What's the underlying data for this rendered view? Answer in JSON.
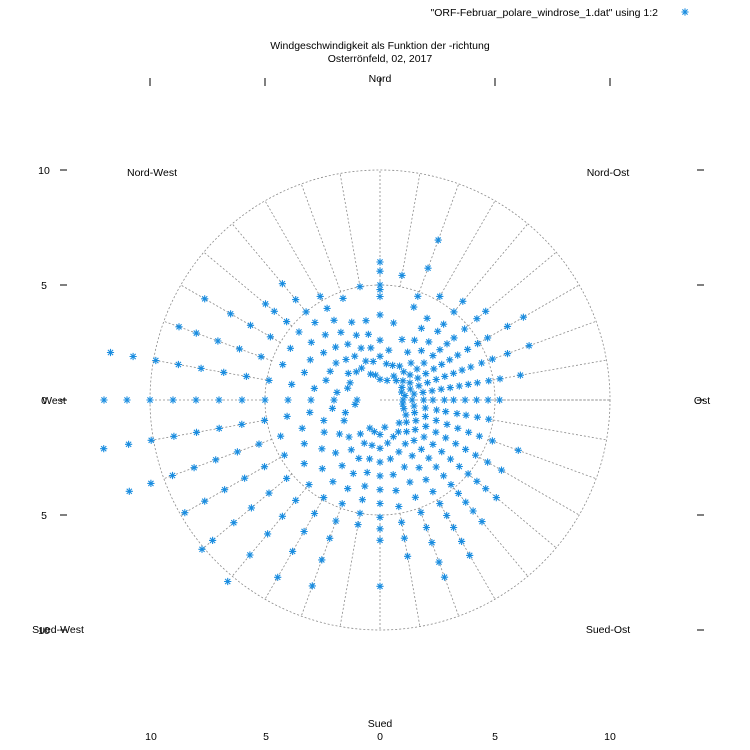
{
  "chart_data": {
    "type": "scatter",
    "polar": true,
    "title": "Windgeschwindigkeit als Funktion der -richtung",
    "subtitle": "Osterrönfeld, 02, 2017",
    "legend": {
      "label": "\"ORF-Februar_polare_windrose_1.dat\" using 1:2",
      "placement": "top-right"
    },
    "series_color": "#1a8de0",
    "grid_color": "#8a8a8a",
    "direction_labels": {
      "n": "Nord",
      "ne": "Nord-Ost",
      "e": "Ost",
      "se": "Sued-Ost",
      "s": "Sued",
      "sw": "Sued-West",
      "w": "West",
      "nw": "Nord-West"
    },
    "x_ticks": [
      "10",
      "5",
      "0",
      "5",
      "10"
    ],
    "y_ticks": [
      "10",
      "5",
      "0",
      "5",
      "10"
    ],
    "r_rings": [
      5,
      10
    ],
    "r_range": [
      0,
      10
    ],
    "angle_step_deg": 10,
    "grid": true,
    "points": [
      [
        0,
        6.0
      ],
      [
        0,
        5.6
      ],
      [
        0,
        4.8
      ],
      [
        0,
        4.5
      ],
      [
        0,
        3.7
      ],
      [
        0,
        2.6
      ],
      [
        0,
        1.9
      ],
      [
        0,
        5.0
      ],
      [
        0,
        0.9
      ],
      [
        10,
        5.5
      ],
      [
        10,
        3.4
      ],
      [
        10,
        2.2
      ],
      [
        10,
        1.6
      ],
      [
        20,
        7.4
      ],
      [
        20,
        6.1
      ],
      [
        20,
        4.8
      ],
      [
        20,
        4.3
      ],
      [
        20,
        2.8
      ],
      [
        20,
        1.6
      ],
      [
        20,
        0.9
      ],
      [
        30,
        5.2
      ],
      [
        30,
        4.1
      ],
      [
        30,
        3.6
      ],
      [
        30,
        3.0
      ],
      [
        30,
        2.4
      ],
      [
        30,
        1.7
      ],
      [
        30,
        1.2
      ],
      [
        40,
        5.6
      ],
      [
        40,
        5.0
      ],
      [
        40,
        4.3
      ],
      [
        40,
        3.9
      ],
      [
        40,
        3.3
      ],
      [
        40,
        2.8
      ],
      [
        40,
        2.1
      ],
      [
        40,
        1.6
      ],
      [
        40,
        1.1
      ],
      [
        50,
        6.0
      ],
      [
        50,
        5.5
      ],
      [
        50,
        4.8
      ],
      [
        50,
        4.2
      ],
      [
        50,
        3.8
      ],
      [
        50,
        3.4
      ],
      [
        50,
        3.0
      ],
      [
        50,
        2.5
      ],
      [
        50,
        2.1
      ],
      [
        50,
        1.7
      ],
      [
        50,
        1.3
      ],
      [
        60,
        7.2
      ],
      [
        60,
        6.4
      ],
      [
        60,
        5.4
      ],
      [
        60,
        4.9
      ],
      [
        60,
        4.4
      ],
      [
        60,
        3.9
      ],
      [
        60,
        3.5
      ],
      [
        60,
        3.1
      ],
      [
        60,
        2.7
      ],
      [
        60,
        2.3
      ],
      [
        60,
        1.9
      ],
      [
        60,
        1.5
      ],
      [
        60,
        1.1
      ],
      [
        70,
        6.9
      ],
      [
        70,
        5.9
      ],
      [
        70,
        5.2
      ],
      [
        70,
        4.7
      ],
      [
        70,
        4.2
      ],
      [
        70,
        3.8
      ],
      [
        70,
        3.4
      ],
      [
        70,
        3.0
      ],
      [
        70,
        2.6
      ],
      [
        70,
        2.2
      ],
      [
        70,
        1.8
      ],
      [
        70,
        1.4
      ],
      [
        70,
        1.0
      ],
      [
        80,
        6.2
      ],
      [
        80,
        5.3
      ],
      [
        80,
        4.8
      ],
      [
        80,
        4.3
      ],
      [
        80,
        3.9
      ],
      [
        80,
        3.5
      ],
      [
        80,
        3.1
      ],
      [
        80,
        2.7
      ],
      [
        80,
        2.3
      ],
      [
        80,
        1.9
      ],
      [
        80,
        1.5
      ],
      [
        80,
        1.1
      ],
      [
        90,
        5.2
      ],
      [
        90,
        4.7
      ],
      [
        90,
        4.2
      ],
      [
        90,
        3.7
      ],
      [
        90,
        3.2
      ],
      [
        90,
        2.8
      ],
      [
        90,
        2.3
      ],
      [
        90,
        1.9
      ],
      [
        90,
        1.4
      ],
      [
        90,
        1.0
      ],
      [
        100,
        4.8
      ],
      [
        100,
        4.3
      ],
      [
        100,
        3.8
      ],
      [
        100,
        3.4
      ],
      [
        100,
        2.9
      ],
      [
        100,
        2.5
      ],
      [
        100,
        2.0
      ],
      [
        100,
        1.5
      ],
      [
        100,
        1.0
      ],
      [
        110,
        6.4
      ],
      [
        110,
        5.2
      ],
      [
        110,
        4.6
      ],
      [
        110,
        4.1
      ],
      [
        110,
        3.6
      ],
      [
        110,
        3.1
      ],
      [
        110,
        2.6
      ],
      [
        110,
        2.1
      ],
      [
        110,
        1.6
      ],
      [
        110,
        1.1
      ],
      [
        120,
        6.1
      ],
      [
        120,
        5.4
      ],
      [
        120,
        4.8
      ],
      [
        120,
        4.3
      ],
      [
        120,
        3.8
      ],
      [
        120,
        3.3
      ],
      [
        120,
        2.8
      ],
      [
        120,
        2.3
      ],
      [
        120,
        1.8
      ],
      [
        120,
        1.3
      ],
      [
        130,
        6.6
      ],
      [
        130,
        6.0
      ],
      [
        130,
        5.5
      ],
      [
        130,
        5.0
      ],
      [
        130,
        4.5
      ],
      [
        130,
        4.0
      ],
      [
        130,
        3.5
      ],
      [
        130,
        3.0
      ],
      [
        130,
        2.5
      ],
      [
        130,
        2.0
      ],
      [
        130,
        1.5
      ],
      [
        140,
        6.9
      ],
      [
        140,
        6.3
      ],
      [
        140,
        5.8
      ],
      [
        140,
        5.3
      ],
      [
        140,
        4.8
      ],
      [
        140,
        4.3
      ],
      [
        140,
        3.8
      ],
      [
        140,
        3.3
      ],
      [
        140,
        2.8
      ],
      [
        140,
        2.3
      ],
      [
        140,
        1.8
      ],
      [
        140,
        1.3
      ],
      [
        150,
        7.8
      ],
      [
        150,
        7.1
      ],
      [
        150,
        6.4
      ],
      [
        150,
        5.8
      ],
      [
        150,
        5.2
      ],
      [
        150,
        4.6
      ],
      [
        150,
        4.0
      ],
      [
        150,
        3.4
      ],
      [
        150,
        2.8
      ],
      [
        150,
        2.2
      ],
      [
        150,
        1.6
      ],
      [
        160,
        8.2
      ],
      [
        160,
        7.5
      ],
      [
        160,
        6.6
      ],
      [
        160,
        5.9
      ],
      [
        160,
        5.2
      ],
      [
        160,
        4.5
      ],
      [
        160,
        3.8
      ],
      [
        160,
        3.1
      ],
      [
        160,
        2.4
      ],
      [
        160,
        1.7
      ],
      [
        170,
        6.9
      ],
      [
        170,
        6.1
      ],
      [
        170,
        5.4
      ],
      [
        170,
        4.7
      ],
      [
        170,
        4.0
      ],
      [
        170,
        3.3
      ],
      [
        170,
        2.6
      ],
      [
        170,
        1.9
      ],
      [
        170,
        1.2
      ],
      [
        180,
        8.1
      ],
      [
        180,
        6.1
      ],
      [
        180,
        5.6
      ],
      [
        180,
        5.1
      ],
      [
        180,
        4.5
      ],
      [
        180,
        3.9
      ],
      [
        180,
        3.3
      ],
      [
        180,
        2.7
      ],
      [
        180,
        2.1
      ],
      [
        180,
        1.5
      ],
      [
        190,
        5.5
      ],
      [
        190,
        5.0
      ],
      [
        190,
        4.4
      ],
      [
        190,
        3.8
      ],
      [
        190,
        3.2
      ],
      [
        190,
        2.6
      ],
      [
        190,
        2.0
      ],
      [
        190,
        1.4
      ],
      [
        200,
        8.6
      ],
      [
        200,
        7.4
      ],
      [
        200,
        6.4
      ],
      [
        200,
        5.6
      ],
      [
        200,
        4.8
      ],
      [
        200,
        4.1
      ],
      [
        200,
        3.4
      ],
      [
        200,
        2.7
      ],
      [
        200,
        2.0
      ],
      [
        200,
        1.3
      ],
      [
        210,
        8.9
      ],
      [
        210,
        7.6
      ],
      [
        210,
        6.6
      ],
      [
        210,
        5.7
      ],
      [
        210,
        4.9
      ],
      [
        210,
        4.1
      ],
      [
        210,
        3.3
      ],
      [
        210,
        2.5
      ],
      [
        210,
        1.7
      ],
      [
        220,
        10.3
      ],
      [
        220,
        8.8
      ],
      [
        220,
        7.6
      ],
      [
        220,
        6.6
      ],
      [
        220,
        5.7
      ],
      [
        220,
        4.8
      ],
      [
        220,
        3.9
      ],
      [
        220,
        3.0
      ],
      [
        220,
        2.1
      ],
      [
        230,
        10.1
      ],
      [
        230,
        9.5
      ],
      [
        230,
        8.3
      ],
      [
        230,
        7.3
      ],
      [
        230,
        6.3
      ],
      [
        230,
        5.3
      ],
      [
        230,
        4.3
      ],
      [
        230,
        3.3
      ],
      [
        230,
        2.3
      ],
      [
        240,
        9.8
      ],
      [
        240,
        8.8
      ],
      [
        240,
        7.8
      ],
      [
        240,
        6.8
      ],
      [
        240,
        5.8
      ],
      [
        240,
        4.8
      ],
      [
        240,
        3.8
      ],
      [
        240,
        2.8
      ],
      [
        240,
        1.8
      ],
      [
        250,
        11.6
      ],
      [
        250,
        10.6
      ],
      [
        250,
        9.6
      ],
      [
        250,
        8.6
      ],
      [
        250,
        7.6
      ],
      [
        250,
        6.6
      ],
      [
        250,
        5.6
      ],
      [
        250,
        4.6
      ],
      [
        250,
        3.6
      ],
      [
        250,
        2.6
      ],
      [
        250,
        1.6
      ],
      [
        260,
        12.2
      ],
      [
        260,
        11.1
      ],
      [
        260,
        10.1
      ],
      [
        260,
        9.1
      ],
      [
        260,
        8.1
      ],
      [
        260,
        7.1
      ],
      [
        260,
        6.1
      ],
      [
        260,
        5.1
      ],
      [
        260,
        4.1
      ],
      [
        260,
        3.1
      ],
      [
        260,
        2.1
      ],
      [
        260,
        1.1
      ],
      [
        270,
        12.0
      ],
      [
        270,
        11.0
      ],
      [
        270,
        10.0
      ],
      [
        270,
        9.0
      ],
      [
        270,
        8.0
      ],
      [
        270,
        7.0
      ],
      [
        270,
        6.0
      ],
      [
        270,
        5.0
      ],
      [
        270,
        4.0
      ],
      [
        270,
        3.0
      ],
      [
        270,
        2.0
      ],
      [
        270,
        1.0
      ],
      [
        280,
        11.9
      ],
      [
        280,
        10.9
      ],
      [
        280,
        9.9
      ],
      [
        280,
        8.9
      ],
      [
        280,
        7.9
      ],
      [
        280,
        6.9
      ],
      [
        280,
        5.9
      ],
      [
        280,
        4.9
      ],
      [
        280,
        3.9
      ],
      [
        280,
        2.9
      ],
      [
        280,
        1.9
      ],
      [
        290,
        9.3
      ],
      [
        290,
        8.5
      ],
      [
        290,
        7.5
      ],
      [
        290,
        6.5
      ],
      [
        290,
        5.5
      ],
      [
        290,
        4.5
      ],
      [
        290,
        3.5
      ],
      [
        290,
        2.5
      ],
      [
        290,
        1.5
      ],
      [
        300,
        8.8
      ],
      [
        300,
        7.5
      ],
      [
        300,
        6.5
      ],
      [
        300,
        5.5
      ],
      [
        300,
        4.5
      ],
      [
        300,
        3.5
      ],
      [
        300,
        2.5
      ],
      [
        300,
        1.5
      ],
      [
        310,
        6.5
      ],
      [
        310,
        6.0
      ],
      [
        310,
        5.3
      ],
      [
        310,
        4.6
      ],
      [
        310,
        3.9
      ],
      [
        310,
        3.2
      ],
      [
        310,
        2.5
      ],
      [
        310,
        1.8
      ],
      [
        320,
        6.6
      ],
      [
        320,
        5.7
      ],
      [
        320,
        5.0
      ],
      [
        320,
        4.4
      ],
      [
        320,
        3.7
      ],
      [
        320,
        3.0
      ],
      [
        320,
        2.3
      ],
      [
        320,
        1.6
      ],
      [
        330,
        5.2
      ],
      [
        330,
        4.6
      ],
      [
        330,
        4.0
      ],
      [
        330,
        3.4
      ],
      [
        330,
        2.8
      ],
      [
        330,
        2.2
      ],
      [
        330,
        1.6
      ],
      [
        340,
        4.7
      ],
      [
        340,
        3.6
      ],
      [
        340,
        3.0
      ],
      [
        340,
        2.4
      ],
      [
        340,
        1.8
      ],
      [
        340,
        1.2
      ],
      [
        350,
        5.0
      ],
      [
        350,
        3.5
      ],
      [
        350,
        2.9
      ],
      [
        350,
        2.3
      ],
      [
        350,
        1.7
      ],
      [
        350,
        1.1
      ]
    ]
  }
}
